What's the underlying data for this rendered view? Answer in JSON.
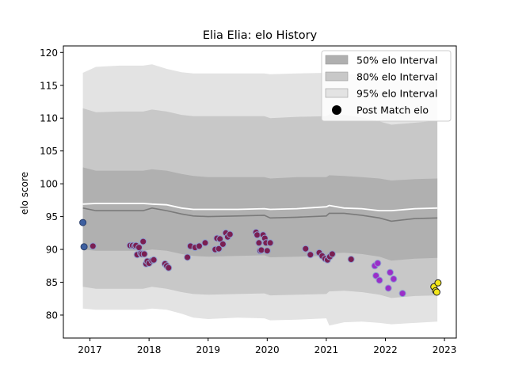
{
  "chart_data": {
    "type": "line",
    "title": "Elia Elia: elo History",
    "xlabel": "",
    "ylabel": "elo score",
    "xlim": [
      2016.55,
      2023.2
    ],
    "ylim": [
      76.5,
      121.0
    ],
    "x_ticks": [
      2017,
      2018,
      2019,
      2020,
      2021,
      2022,
      2023
    ],
    "x_tick_labels": [
      "2017",
      "2018",
      "2019",
      "2020",
      "2021",
      "2022",
      "2023"
    ],
    "y_ticks": [
      80,
      85,
      90,
      95,
      100,
      105,
      110,
      115,
      120
    ],
    "y_tick_labels": [
      "80",
      "85",
      "90",
      "95",
      "100",
      "105",
      "110",
      "115",
      "120"
    ],
    "legend": {
      "position": "top-right",
      "entries": [
        {
          "label": "50% elo Interval",
          "color": "#b0b0b0"
        },
        {
          "label": "80% elo Interval",
          "color": "#c8c8c8"
        },
        {
          "label": "95% elo Interval",
          "color": "#e3e3e3"
        },
        {
          "label": "Post Match elo",
          "color": "#000000"
        }
      ]
    },
    "band_x": [
      2016.88,
      2017.1,
      2017.5,
      2017.9,
      2018.05,
      2018.3,
      2018.55,
      2018.75,
      2019.0,
      2019.5,
      2019.95,
      2020.05,
      2020.5,
      2021.0,
      2021.05,
      2021.3,
      2021.6,
      2021.9,
      2022.1,
      2022.5,
      2022.88
    ],
    "median": [
      96.3,
      95.9,
      95.9,
      95.9,
      96.3,
      95.9,
      95.4,
      95.1,
      95.0,
      95.1,
      95.2,
      94.8,
      94.9,
      95.1,
      95.5,
      95.5,
      95.2,
      94.8,
      94.3,
      94.7,
      94.8
    ],
    "upper_line": [
      96.9,
      97.0,
      97.0,
      97.0,
      96.9,
      96.8,
      96.3,
      96.1,
      96.1,
      96.1,
      96.2,
      96.1,
      96.2,
      96.5,
      96.7,
      96.3,
      96.2,
      95.9,
      95.9,
      96.2,
      96.3
    ],
    "band50": {
      "upper": [
        102.5,
        102.0,
        102.0,
        102.0,
        102.2,
        102.0,
        101.5,
        101.2,
        101.0,
        101.0,
        101.0,
        100.8,
        101.0,
        101.0,
        101.3,
        101.2,
        101.0,
        100.8,
        100.5,
        100.7,
        100.8
      ],
      "lower": [
        90.0,
        89.8,
        89.8,
        89.8,
        90.0,
        89.8,
        89.3,
        89.0,
        88.9,
        89.0,
        89.1,
        88.8,
        88.9,
        89.0,
        89.4,
        89.5,
        89.3,
        88.9,
        88.3,
        88.6,
        88.7
      ]
    },
    "band80": {
      "upper": [
        111.5,
        110.9,
        111.0,
        111.0,
        111.3,
        111.0,
        110.5,
        110.3,
        110.3,
        110.3,
        110.3,
        110.0,
        110.2,
        110.3,
        110.6,
        110.5,
        110.1,
        109.5,
        109.0,
        109.3,
        109.6
      ],
      "lower": [
        84.3,
        84.0,
        84.0,
        84.0,
        84.3,
        84.0,
        83.5,
        83.2,
        83.1,
        83.2,
        83.3,
        83.0,
        83.1,
        83.2,
        83.6,
        83.7,
        83.5,
        83.1,
        82.6,
        82.9,
        83.0
      ]
    },
    "band95": {
      "upper": [
        116.9,
        117.8,
        118.0,
        118.0,
        118.2,
        117.5,
        117.0,
        116.8,
        116.8,
        116.8,
        116.8,
        116.7,
        116.8,
        116.9,
        117.0,
        116.8,
        116.5,
        116.0,
        115.7,
        115.9,
        116.0
      ],
      "lower": [
        81.0,
        80.8,
        80.8,
        80.8,
        81.0,
        80.8,
        80.2,
        79.6,
        79.4,
        79.6,
        79.5,
        79.2,
        79.3,
        79.5,
        78.4,
        78.9,
        79.0,
        78.8,
        78.6,
        78.8,
        79.0
      ]
    },
    "series": [
      {
        "x": [
          2016.88,
          2016.9,
          2017.05,
          2017.68,
          2017.72,
          2017.76,
          2017.78,
          2017.8,
          2017.83,
          2017.86,
          2017.88,
          2017.9,
          2017.92,
          2017.95,
          2017.97,
          2018.0,
          2018.05,
          2018.08,
          2018.27,
          2018.3,
          2018.33,
          2018.65,
          2018.7,
          2018.78,
          2018.85,
          2018.95,
          2019.12,
          2019.15,
          2019.18,
          2019.2,
          2019.25,
          2019.3,
          2019.33,
          2019.37,
          2019.81,
          2019.83,
          2019.86,
          2019.88,
          2019.9,
          2019.93,
          2019.96,
          2019.98,
          2020.0,
          2020.05,
          2020.65,
          2020.73,
          2020.88,
          2020.93,
          2020.98,
          2021.02,
          2021.06,
          2021.1,
          2021.42,
          2021.82,
          2021.84,
          2021.87,
          2021.9,
          2022.05,
          2022.08,
          2022.14,
          2022.29,
          2022.82,
          2022.85,
          2022.87,
          2022.89
        ],
        "y": [
          94.1,
          90.4,
          90.5,
          90.6,
          90.6,
          90.5,
          90.6,
          89.2,
          90.3,
          89.4,
          89.3,
          91.2,
          89.3,
          87.8,
          88.2,
          87.9,
          88.3,
          88.4,
          87.8,
          87.5,
          87.2,
          88.8,
          90.5,
          90.3,
          90.5,
          91.0,
          90.0,
          91.7,
          90.1,
          91.6,
          90.8,
          92.5,
          91.9,
          92.3,
          92.6,
          92.2,
          91.0,
          89.8,
          89.9,
          92.2,
          91.7,
          91.0,
          89.8,
          91.0,
          90.1,
          89.2,
          89.5,
          89.0,
          88.6,
          88.4,
          88.9,
          89.3,
          88.5,
          87.5,
          86.0,
          87.9,
          85.3,
          84.1,
          86.5,
          85.5,
          83.3,
          84.3,
          83.7,
          83.5,
          84.9
        ],
        "color_hint": "viridis"
      }
    ]
  }
}
